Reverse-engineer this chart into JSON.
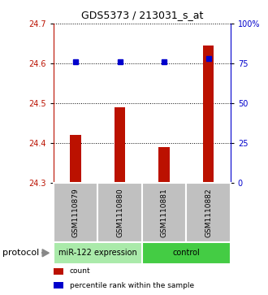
{
  "title": "GDS5373 / 213031_s_at",
  "samples": [
    "GSM1110879",
    "GSM1110880",
    "GSM1110881",
    "GSM1110882"
  ],
  "bar_values": [
    24.42,
    24.49,
    24.39,
    24.645
  ],
  "percentile_values": [
    76,
    76,
    76,
    78
  ],
  "ylim_left": [
    24.3,
    24.7
  ],
  "ylim_right": [
    0,
    100
  ],
  "yticks_left": [
    24.3,
    24.4,
    24.5,
    24.6,
    24.7
  ],
  "yticks_right": [
    0,
    25,
    50,
    75,
    100
  ],
  "ytick_labels_right": [
    "0",
    "25",
    "50",
    "75",
    "100%"
  ],
  "bar_color": "#bb1100",
  "dot_color": "#0000cc",
  "bar_width": 0.25,
  "groups": [
    {
      "label": "miR-122 expression",
      "samples": [
        0,
        1
      ],
      "color": "#aaeaaa"
    },
    {
      "label": "control",
      "samples": [
        2,
        3
      ],
      "color": "#44cc44"
    }
  ],
  "protocol_label": "protocol",
  "legend_items": [
    {
      "color": "#bb1100",
      "label": "count"
    },
    {
      "color": "#0000cc",
      "label": "percentile rank within the sample"
    }
  ],
  "background_color": "#ffffff",
  "label_box_color": "#c0c0c0"
}
